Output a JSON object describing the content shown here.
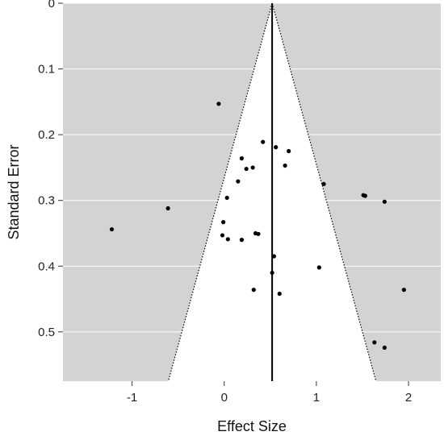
{
  "chart_data": {
    "type": "scatter",
    "subtype": "funnel plot",
    "title": "",
    "xlabel": "Effect Size",
    "ylabel": "Standard Error",
    "xlim": [
      -1.75,
      2.35
    ],
    "ylim": [
      0.575,
      0
    ],
    "y_axis_inverted": true,
    "x_ticks": [
      -1,
      0,
      1,
      2
    ],
    "x_tick_labels": [
      "-1",
      "0",
      "1",
      "2"
    ],
    "y_ticks": [
      0,
      0.1,
      0.2,
      0.3,
      0.4,
      0.5
    ],
    "y_tick_labels": [
      "0",
      "0.1",
      "0.2",
      "0.3",
      "0.4",
      "0.5"
    ],
    "grid": "horizontal",
    "summary_effect": 0.52,
    "funnel_z": 1.96,
    "colors": {
      "panel_background": "#d3d3d3",
      "funnel_fill": "#ffffff",
      "gridline": "#ffffff",
      "points": "#000000",
      "summary_line": "#000000",
      "funnel_edge": "#000000"
    },
    "points": [
      {
        "x": -0.06,
        "y": 0.153
      },
      {
        "x": 0.42,
        "y": 0.211
      },
      {
        "x": 0.56,
        "y": 0.219
      },
      {
        "x": 0.7,
        "y": 0.225
      },
      {
        "x": 0.19,
        "y": 0.236
      },
      {
        "x": 0.66,
        "y": 0.247
      },
      {
        "x": 0.31,
        "y": 0.25
      },
      {
        "x": 0.24,
        "y": 0.252
      },
      {
        "x": 0.15,
        "y": 0.271
      },
      {
        "x": 1.08,
        "y": 0.275
      },
      {
        "x": 1.51,
        "y": 0.292
      },
      {
        "x": 1.53,
        "y": 0.293
      },
      {
        "x": 0.03,
        "y": 0.296
      },
      {
        "x": 1.74,
        "y": 0.302
      },
      {
        "x": -0.61,
        "y": 0.312
      },
      {
        "x": -0.01,
        "y": 0.333
      },
      {
        "x": -1.22,
        "y": 0.344
      },
      {
        "x": 0.34,
        "y": 0.35
      },
      {
        "x": 0.37,
        "y": 0.351
      },
      {
        "x": -0.02,
        "y": 0.353
      },
      {
        "x": 0.04,
        "y": 0.359
      },
      {
        "x": 0.19,
        "y": 0.36
      },
      {
        "x": 0.54,
        "y": 0.385
      },
      {
        "x": 1.03,
        "y": 0.402
      },
      {
        "x": 0.52,
        "y": 0.41
      },
      {
        "x": 0.32,
        "y": 0.436
      },
      {
        "x": 1.95,
        "y": 0.436
      },
      {
        "x": 0.6,
        "y": 0.442
      },
      {
        "x": 1.63,
        "y": 0.516
      },
      {
        "x": 1.74,
        "y": 0.524
      }
    ]
  }
}
